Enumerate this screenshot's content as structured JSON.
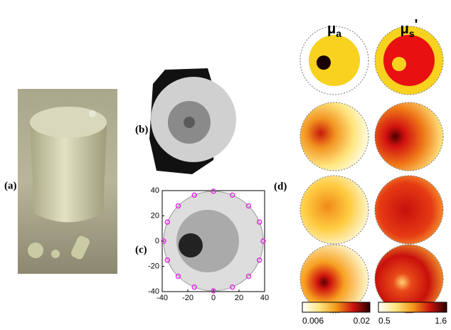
{
  "panels": {
    "a": {
      "label": "(a)"
    },
    "b": {
      "label": "(b)"
    },
    "d": {
      "label": "(d)"
    },
    "c": {
      "label": "(c)",
      "xlim": [
        -40,
        40
      ],
      "ylim": [
        -40,
        40
      ],
      "xticks": [
        -40,
        -20,
        0,
        20,
        40
      ],
      "yticks": [
        40,
        20,
        0,
        -20,
        -40
      ]
    }
  },
  "columns": [
    {
      "symbol": "μ",
      "subscript": "a",
      "prime": ""
    },
    {
      "symbol": "μ",
      "subscript": "s",
      "prime": "'"
    }
  ],
  "colorbars": [
    {
      "min": "0.006",
      "max": "0.02"
    },
    {
      "min": "0.5",
      "max": "1.6"
    }
  ]
}
